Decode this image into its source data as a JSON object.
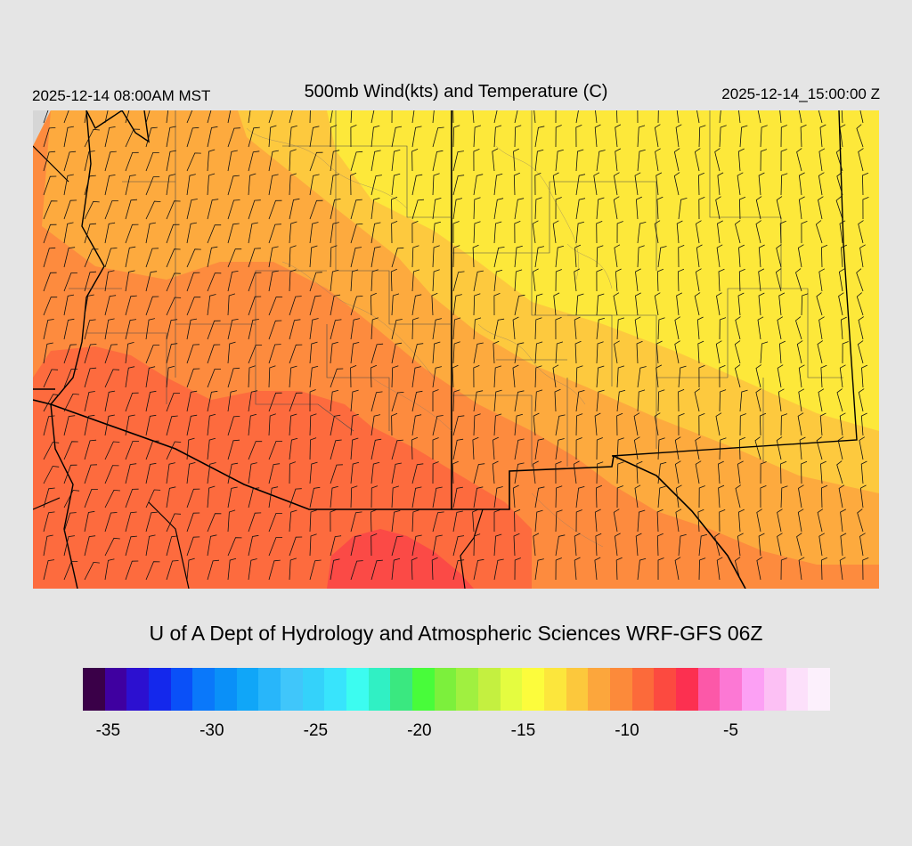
{
  "header": {
    "local_time": "2025-12-14 08:00AM MST",
    "title": "500mb Wind(kts) and Temperature (C)",
    "valid_time": "2025-12-14_15:00:00 Z"
  },
  "credit": "U of A Dept of Hydrology and Atmospheric Sciences WRF-GFS 06Z",
  "colorbar": {
    "colors": [
      "#3a0048",
      "#3f00a0",
      "#2c10d0",
      "#1428ec",
      "#0a50f8",
      "#0a78fa",
      "#0a90f8",
      "#10a6f8",
      "#28b6fa",
      "#40c6fa",
      "#34d2fa",
      "#38e4fc",
      "#3cfcf0",
      "#30f0c4",
      "#3ae880",
      "#48fc3a",
      "#7cf03c",
      "#a0f040",
      "#c4f040",
      "#e4fc40",
      "#fcfc3c",
      "#fce63c",
      "#fcc83c",
      "#fca63c",
      "#fc8a3a",
      "#fc6a3a",
      "#fc4a40",
      "#fc3050",
      "#fc58a8",
      "#fc78d4",
      "#fca0f4",
      "#fcc0f4",
      "#fce0fa",
      "#fcf0fc"
    ],
    "labels": [
      "-35",
      "-30",
      "-25",
      "-20",
      "-15",
      "-10",
      "-5"
    ],
    "label_values": [
      -35,
      -30,
      -25,
      -20,
      -15,
      -10,
      -5
    ],
    "min": -36,
    "max": 0
  },
  "map": {
    "region": "Southwest United States / Northern Mexico",
    "field": "500mb temperature with wind barbs",
    "colors": {
      "cold_band": "#fd6b3e",
      "cold_core": "#fb4a46",
      "mid_band": "#fd8b3e",
      "warm_band": "#fdaa3e",
      "mild_band": "#fdc93e",
      "warmest": "#fde83a",
      "no_data": "#d6d6d6"
    }
  }
}
